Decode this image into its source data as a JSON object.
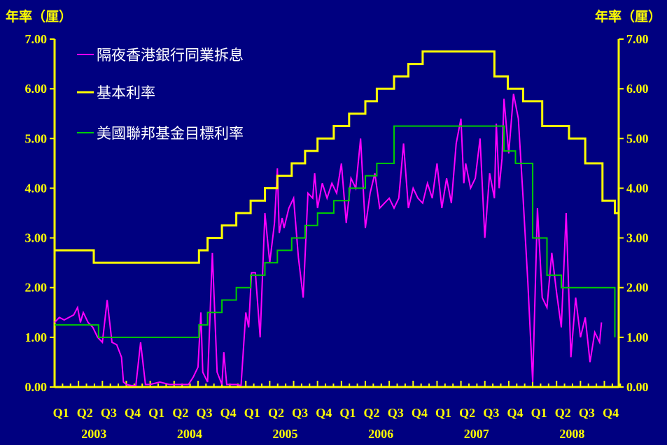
{
  "chart_data": {
    "type": "line",
    "y_axis_title_left": "年率（厘）",
    "y_axis_title_right": "年率（厘）",
    "ylim": [
      0,
      7
    ],
    "y_ticks": [
      "0.00",
      "1.00",
      "2.00",
      "3.00",
      "4.00",
      "5.00",
      "6.00",
      "7.00"
    ],
    "xlim": [
      2003.0,
      2008.9
    ],
    "quarter_labels": [
      "Q1",
      "Q2",
      "Q3",
      "Q4",
      "Q1",
      "Q2",
      "Q3",
      "Q4",
      "Q1",
      "Q2",
      "Q3",
      "Q4",
      "Q1",
      "Q2",
      "Q3",
      "Q4",
      "Q1",
      "Q2",
      "Q3",
      "Q4",
      "Q1",
      "Q2",
      "Q3",
      "Q4"
    ],
    "year_labels": [
      "2003",
      "2004",
      "2005",
      "2006",
      "2007",
      "2008"
    ],
    "colors": {
      "background": "#000080",
      "axis": "#FFFF00",
      "hibor": "#FF00FF",
      "base_rate": "#FFFF00",
      "fed_target": "#00CC00"
    },
    "series": [
      {
        "name": "隔夜香港銀行同業拆息",
        "color": "#FF00FF",
        "x": [
          2003.0,
          2003.05,
          2003.1,
          2003.15,
          2003.2,
          2003.24,
          2003.27,
          2003.3,
          2003.35,
          2003.4,
          2003.45,
          2003.5,
          2003.55,
          2003.6,
          2003.65,
          2003.7,
          2003.72,
          2003.75,
          2003.8,
          2003.85,
          2003.9,
          2003.95,
          2004.0,
          2004.1,
          2004.2,
          2004.3,
          2004.4,
          2004.45,
          2004.5,
          2004.53,
          2004.55,
          2004.6,
          2004.65,
          2004.7,
          2004.75,
          2004.77,
          2004.8,
          2004.85,
          2004.9,
          2004.95,
          2005.0,
          2005.03,
          2005.06,
          2005.1,
          2005.15,
          2005.2,
          2005.25,
          2005.3,
          2005.33,
          2005.35,
          2005.38,
          2005.4,
          2005.45,
          2005.5,
          2005.55,
          2005.6,
          2005.65,
          2005.7,
          2005.72,
          2005.75,
          2005.8,
          2005.85,
          2005.9,
          2005.95,
          2006.0,
          2006.05,
          2006.1,
          2006.15,
          2006.2,
          2006.25,
          2006.3,
          2006.35,
          2006.4,
          2006.45,
          2006.5,
          2006.55,
          2006.6,
          2006.65,
          2006.7,
          2006.75,
          2006.8,
          2006.85,
          2006.9,
          2006.95,
          2007.0,
          2007.05,
          2007.1,
          2007.15,
          2007.2,
          2007.25,
          2007.28,
          2007.3,
          2007.35,
          2007.4,
          2007.45,
          2007.5,
          2007.55,
          2007.6,
          2007.62,
          2007.65,
          2007.68,
          2007.7,
          2007.75,
          2007.8,
          2007.85,
          2007.9,
          2007.95,
          2008.0,
          2008.05,
          2008.1,
          2008.15,
          2008.2,
          2008.25,
          2008.3,
          2008.35,
          2008.4,
          2008.45,
          2008.5,
          2008.55,
          2008.6,
          2008.65,
          2008.7,
          2008.72
        ],
        "values": [
          1.3,
          1.4,
          1.35,
          1.4,
          1.45,
          1.6,
          1.3,
          1.5,
          1.3,
          1.2,
          1.0,
          0.9,
          1.75,
          0.9,
          0.85,
          0.6,
          0.1,
          0.05,
          0.03,
          0.03,
          0.9,
          0.05,
          0.05,
          0.1,
          0.05,
          0.05,
          0.05,
          0.2,
          0.4,
          1.5,
          0.3,
          0.1,
          2.7,
          0.3,
          0.05,
          0.7,
          0.05,
          0.05,
          0.05,
          0.03,
          1.5,
          1.2,
          2.3,
          2.3,
          1.0,
          3.5,
          2.5,
          3.3,
          4.4,
          3.1,
          3.4,
          3.2,
          3.6,
          3.8,
          2.6,
          1.8,
          3.9,
          3.8,
          4.3,
          3.6,
          4.1,
          3.8,
          4.1,
          3.9,
          4.5,
          3.3,
          4.2,
          4.0,
          5.0,
          3.2,
          3.9,
          4.3,
          3.6,
          3.7,
          3.8,
          3.6,
          3.8,
          4.9,
          3.6,
          4.0,
          3.8,
          3.7,
          4.1,
          3.8,
          4.5,
          3.6,
          4.2,
          3.7,
          4.9,
          5.4,
          4.1,
          4.5,
          4.0,
          4.2,
          5.0,
          3.0,
          4.3,
          3.8,
          5.3,
          4.0,
          4.6,
          5.8,
          4.7,
          5.9,
          5.4,
          3.8,
          2.1,
          0.1,
          3.6,
          1.8,
          1.6,
          2.7,
          1.9,
          1.2,
          3.5,
          0.6,
          1.8,
          1.0,
          1.4,
          0.5,
          1.1,
          0.9,
          1.3
        ]
      },
      {
        "name": "基本利率",
        "color": "#FFFF00",
        "x": [
          2003.0,
          2003.41,
          2003.41,
          2004.0,
          2004.51,
          2004.51,
          2004.6,
          2004.6,
          2004.75,
          2004.75,
          2004.9,
          2004.9,
          2005.05,
          2005.05,
          2005.2,
          2005.2,
          2005.33,
          2005.33,
          2005.48,
          2005.48,
          2005.62,
          2005.62,
          2005.75,
          2005.75,
          2005.92,
          2005.92,
          2006.08,
          2006.08,
          2006.25,
          2006.25,
          2006.37,
          2006.37,
          2006.55,
          2006.55,
          2006.7,
          2006.7,
          2006.85,
          2006.85,
          2007.0,
          2007.0,
          2007.15,
          2007.15,
          2007.3,
          2007.3,
          2007.45,
          2007.45,
          2007.6,
          2007.6,
          2007.74,
          2007.74,
          2007.9,
          2007.9,
          2008.1,
          2008.1,
          2008.38,
          2008.38,
          2008.55,
          2008.55,
          2008.73,
          2008.73,
          2008.86,
          2008.86,
          2008.9,
          2008.9
        ],
        "values": [
          2.75,
          2.75,
          2.5,
          2.5,
          2.5,
          2.75,
          2.75,
          3.0,
          3.0,
          3.25,
          3.25,
          3.5,
          3.5,
          3.75,
          3.75,
          4.0,
          4.0,
          4.25,
          4.25,
          4.5,
          4.5,
          4.75,
          4.75,
          5.0,
          5.0,
          5.25,
          5.25,
          5.5,
          5.5,
          5.75,
          5.75,
          6.0,
          6.0,
          6.25,
          6.25,
          6.5,
          6.5,
          6.75,
          6.75,
          6.75,
          6.75,
          6.75,
          6.75,
          6.75,
          6.75,
          6.75,
          6.75,
          6.25,
          6.25,
          6.0,
          6.0,
          5.75,
          5.75,
          5.25,
          5.25,
          5.0,
          5.0,
          4.5,
          4.5,
          3.75,
          3.75,
          3.5,
          3.5,
          3.5
        ]
      },
      {
        "name": "美國聯邦基金目標利率",
        "color": "#00CC00",
        "x": [
          2003.0,
          2003.46,
          2003.46,
          2004.51,
          2004.51,
          2004.6,
          2004.6,
          2004.75,
          2004.75,
          2004.9,
          2004.9,
          2005.05,
          2005.05,
          2005.2,
          2005.2,
          2005.33,
          2005.33,
          2005.48,
          2005.48,
          2005.62,
          2005.62,
          2005.75,
          2005.75,
          2005.92,
          2005.92,
          2006.08,
          2006.08,
          2006.25,
          2006.25,
          2006.37,
          2006.37,
          2006.55,
          2006.55,
          2007.7,
          2007.7,
          2007.82,
          2007.82,
          2008.0,
          2008.0,
          2008.15,
          2008.15,
          2008.3,
          2008.3,
          2008.75,
          2008.75,
          2008.86,
          2008.86
        ],
        "values": [
          1.25,
          1.25,
          1.0,
          1.0,
          1.25,
          1.25,
          1.5,
          1.5,
          1.75,
          1.75,
          2.0,
          2.0,
          2.25,
          2.25,
          2.5,
          2.5,
          2.75,
          2.75,
          3.0,
          3.0,
          3.25,
          3.25,
          3.5,
          3.5,
          3.75,
          3.75,
          4.0,
          4.0,
          4.25,
          4.25,
          4.5,
          4.5,
          5.25,
          5.25,
          4.75,
          4.75,
          4.5,
          4.5,
          3.0,
          3.0,
          2.25,
          2.25,
          2.0,
          2.0,
          2.0,
          2.0,
          1.0
        ]
      }
    ],
    "legend_position": "top-left"
  }
}
